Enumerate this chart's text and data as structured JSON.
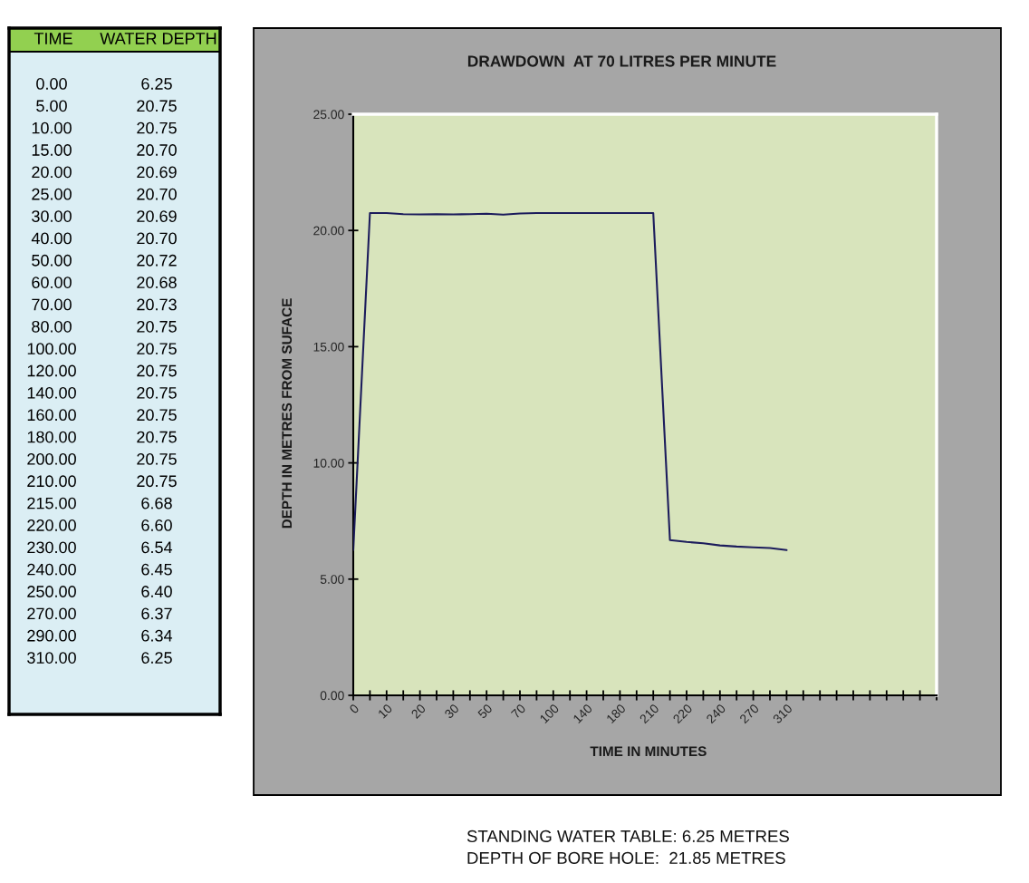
{
  "chart_data": [
    {
      "type": "other",
      "xlabel": "TIME",
      "categories": [
        "0.00",
        "5.00",
        "10.00",
        "15.00",
        "20.00",
        "25.00",
        "30.00",
        "40.00",
        "50.00",
        "60.00",
        "70.00",
        "80.00",
        "100.00",
        "120.00",
        "140.00",
        "160.00",
        "180.00",
        "200.00",
        "210.00",
        "215.00",
        "220.00",
        "230.00",
        "240.00",
        "250.00",
        "270.00",
        "290.00",
        "310.00"
      ],
      "series": [
        {
          "name": "WATER DEPTH",
          "values": [
            6.25,
            20.75,
            20.75,
            20.7,
            20.69,
            20.7,
            20.69,
            20.7,
            20.72,
            20.68,
            20.73,
            20.75,
            20.75,
            20.75,
            20.75,
            20.75,
            20.75,
            20.75,
            20.75,
            6.68,
            6.6,
            6.54,
            6.45,
            6.4,
            6.37,
            6.34,
            6.25
          ],
          "value_labels": [
            "6.25",
            "20.75",
            "20.75",
            "20.70",
            "20.69",
            "20.70",
            "20.69",
            "20.70",
            "20.72",
            "20.68",
            "20.73",
            "20.75",
            "20.75",
            "20.75",
            "20.75",
            "20.75",
            "20.75",
            "20.75",
            "20.75",
            "6.68",
            "6.60",
            "6.54",
            "6.45",
            "6.40",
            "6.37",
            "6.34",
            "6.25"
          ]
        }
      ]
    },
    {
      "type": "line",
      "title": "DRAWDOWN  AT 70 LITRES PER MINUTE",
      "xlabel": "TIME IN MINUTES",
      "ylabel": "DEPTH IN METRES FROM SUFACE",
      "categories": [
        "0",
        null,
        "10",
        null,
        "20",
        null,
        "30",
        null,
        "50",
        null,
        "70",
        null,
        "100",
        null,
        "140",
        null,
        "180",
        null,
        "210",
        null,
        "220",
        null,
        "240",
        null,
        "270",
        null,
        "310",
        null,
        null,
        null,
        null,
        null,
        null,
        null,
        null,
        null
      ],
      "series": [
        {
          "color": "#1c1c5c",
          "values": [
            6.25,
            20.75,
            20.75,
            20.7,
            20.69,
            20.7,
            20.69,
            20.7,
            20.72,
            20.68,
            20.73,
            20.75,
            20.75,
            20.75,
            20.75,
            20.75,
            20.75,
            20.75,
            20.75,
            6.68,
            6.6,
            6.54,
            6.45,
            6.4,
            6.37,
            6.34,
            6.25,
            null,
            null,
            null,
            null,
            null,
            null,
            null,
            null,
            null
          ]
        }
      ],
      "ylim": [
        0,
        25
      ],
      "yticks": [
        {
          "value": 0,
          "label": "0.00"
        },
        {
          "value": 5,
          "label": "5.00"
        },
        {
          "value": 10,
          "label": "10.00"
        },
        {
          "value": 15,
          "label": "15.00"
        },
        {
          "value": 20,
          "label": "20.00"
        },
        {
          "value": 25,
          "label": "25.00"
        }
      ],
      "grid": false,
      "line_style": "solid",
      "annotations": [
        "STANDING WATER TABLE: 6.25 METRES",
        "DEPTH OF BORE HOLE:  21.85 METRES"
      ]
    }
  ]
}
